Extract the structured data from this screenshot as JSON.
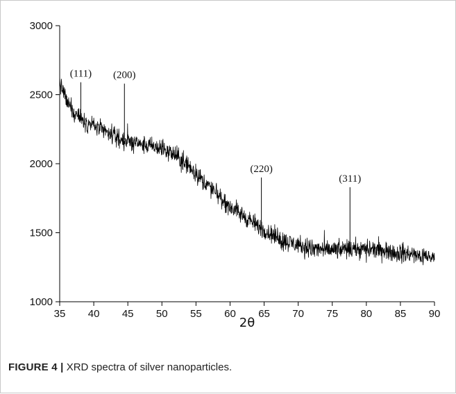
{
  "caption": {
    "label": "FIGURE 4 |",
    "text": "XRD spectra of silver nanoparticles."
  },
  "chart_data": {
    "type": "line",
    "xlabel": "2θ",
    "ylabel": "",
    "xlim": [
      35,
      90
    ],
    "ylim": [
      1000,
      3000
    ],
    "xticks": [
      35,
      40,
      45,
      50,
      55,
      60,
      65,
      70,
      75,
      80,
      85,
      90
    ],
    "yticks": [
      1000,
      1500,
      2000,
      2500,
      3000
    ],
    "grid": false,
    "line_color": "#000000",
    "trend": {
      "x": [
        35,
        36,
        37,
        38,
        39,
        40,
        42,
        44,
        46,
        48,
        50,
        52,
        54,
        56,
        58,
        60,
        62,
        64,
        66,
        68,
        70,
        72,
        74,
        76,
        78,
        80,
        82,
        84,
        86,
        88,
        90
      ],
      "y": [
        2600,
        2450,
        2380,
        2330,
        2300,
        2280,
        2220,
        2180,
        2150,
        2130,
        2110,
        2060,
        1980,
        1880,
        1780,
        1690,
        1620,
        1550,
        1490,
        1440,
        1410,
        1385,
        1375,
        1375,
        1380,
        1380,
        1370,
        1360,
        1345,
        1330,
        1315
      ]
    },
    "noise_amplitude": 60,
    "peaks": [
      {
        "label": "(111)",
        "x": 38.1,
        "y": 2590
      },
      {
        "label": "(200)",
        "x": 44.5,
        "y": 2580
      },
      {
        "label": "(220)",
        "x": 64.6,
        "y": 1900
      },
      {
        "label": "(311)",
        "x": 77.6,
        "y": 1830
      }
    ]
  }
}
